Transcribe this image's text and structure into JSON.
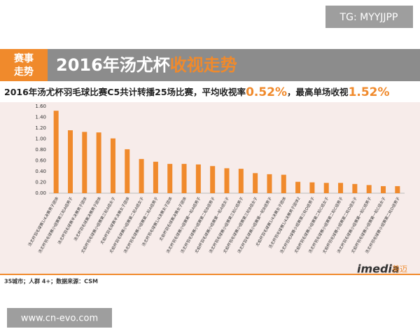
{
  "watermark_top": "TG: MYYJJPP",
  "watermark_bottom": "www.cn-evo.com",
  "badge": [
    "赛事",
    "走势"
  ],
  "header": {
    "title": "2016年汤尤杯",
    "title_highlight": "收视走势"
  },
  "footer": {
    "note": "35城市；人群 4+；数据来源：CSM",
    "logo": "imedia",
    "logo_cn": "英迈"
  },
  "chart_data": {
    "type": "bar",
    "subtitle_parts": [
      "2016年汤尤杯羽毛球比赛C5共计转播25场比赛，平均收视率",
      "0.52%",
      "，最高单场收视",
      "1.52%"
    ],
    "categories": [
      "汤尤杯羽毛球赛1/4决赛男子团体",
      "汤尤杯羽毛球赛小组赛第三轮A组男子",
      "汤尤杯羽毛球赛半决赛男子团体",
      "汤尤杯羽毛球赛决赛男子团体",
      "尤伯杯羽毛球赛小组赛第三轮A组女子",
      "尤伯杯羽毛球赛半决赛女子团体",
      "尤伯杯羽毛球赛小组赛第二轮A组女子",
      "汤尤杯羽毛球赛小组赛第二轮A组男子",
      "汤尤杯羽毛球赛1/4决赛女子团体",
      "尤伯杯羽毛球赛决赛女子团体",
      "汤尤杯羽毛球赛小组赛第一轮A组男子",
      "汤尤杯羽毛球赛小组赛第二轮B组男子",
      "尤伯杯羽毛球赛小组赛第一轮A组女子",
      "汤尤杯羽毛球赛小组赛第三轮C组男子",
      "尤伯杯羽毛球赛小组赛第三轮B组女子",
      "汤尤杯羽毛球赛小组赛第一轮B组男子",
      "尤伯杯羽毛球赛1/4决赛女子团体",
      "汤尤杯羽毛球赛1/4决赛男子团体2",
      "汤尤杯羽毛球赛小组赛第三轮D组男子",
      "尤伯杯羽毛球赛小组赛第二轮C组女子",
      "汤尤杯羽毛球赛小组赛第二轮C组男子",
      "尤伯杯羽毛球赛小组赛第二轮D组女子",
      "汤尤杯羽毛球赛小组赛第一轮C组男子",
      "尤伯杯羽毛球赛小组赛第一轮C组女子",
      "汤尤杯羽毛球赛小组赛第二轮D组男子"
    ],
    "values": [
      1.52,
      1.16,
      1.13,
      1.12,
      1.01,
      0.81,
      0.63,
      0.58,
      0.54,
      0.54,
      0.53,
      0.5,
      0.46,
      0.45,
      0.37,
      0.35,
      0.34,
      0.21,
      0.2,
      0.19,
      0.19,
      0.17,
      0.15,
      0.13,
      0.13
    ],
    "color": "#f08a2c",
    "ylim": [
      0,
      1.6
    ],
    "yticks": [
      {
        "value": 0,
        "label": "0.00"
      },
      {
        "value": 0.2,
        "label": "0.20"
      },
      {
        "value": 0.4,
        "label": "0.40"
      },
      {
        "value": 0.6,
        "label": "0.60"
      },
      {
        "value": 0.8,
        "label": "0.80"
      },
      {
        "value": 1,
        "label": "1.00"
      },
      {
        "value": 1.2,
        "label": "1.20"
      },
      {
        "value": 1.4,
        "label": "1.40"
      },
      {
        "value": 1.6,
        "label": "1.60"
      }
    ],
    "grid": false
  }
}
